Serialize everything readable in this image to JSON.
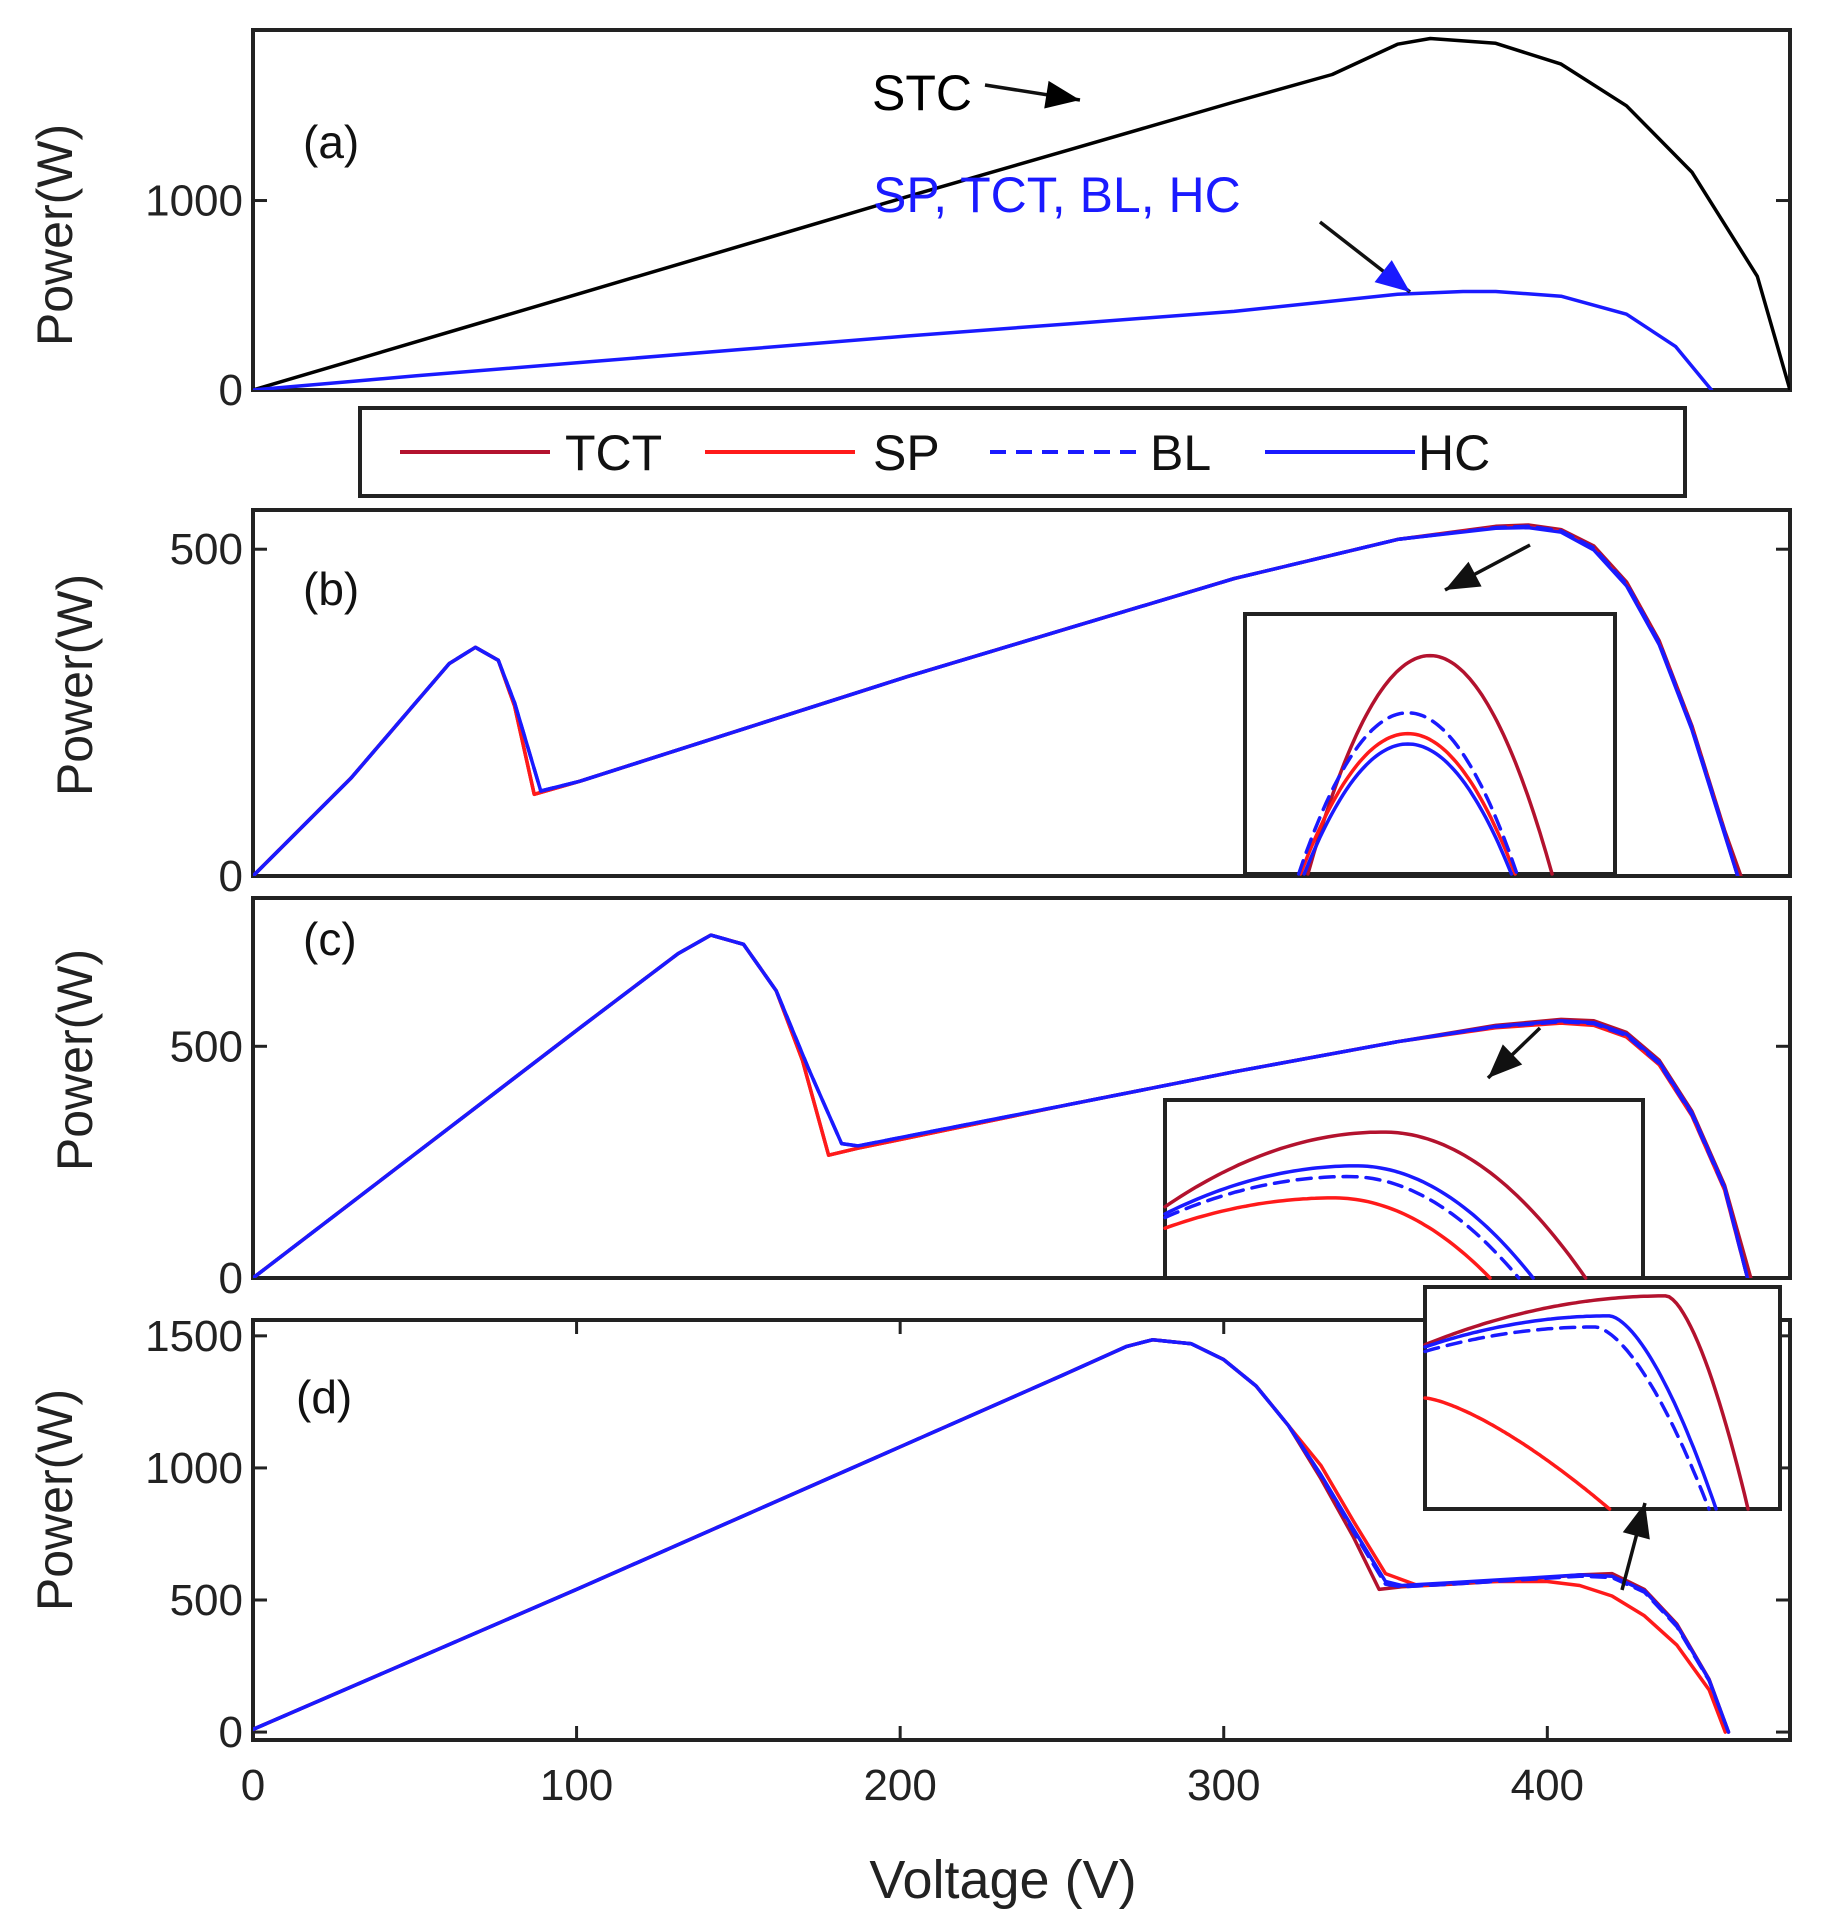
{
  "colors": {
    "STC": "#000000",
    "TCT": "#b3122e",
    "SP": "#ff1a1a",
    "BL": "#1a1aff",
    "HC": "#1a1aff",
    "annot_blue": "#1a1aff"
  },
  "chart_data": [
    {
      "id": "a",
      "type": "line",
      "panel_label": "(a)",
      "ylabel": "Power(W)",
      "xlim": [
        0,
        470
      ],
      "ylim": [
        0,
        1900
      ],
      "yticks": [
        0,
        1000
      ],
      "ytick_labels": [
        "0",
        "1000"
      ],
      "series": [
        {
          "name": "STC",
          "x": [
            0,
            50,
            100,
            150,
            200,
            250,
            300,
            330,
            350,
            360,
            380,
            400,
            420,
            440,
            460,
            470
          ],
          "y": [
            0,
            255,
            510,
            765,
            1020,
            1270,
            1520,
            1665,
            1825,
            1855,
            1830,
            1720,
            1500,
            1150,
            600,
            0
          ]
        },
        {
          "name": "SP, TCT, BL, HC",
          "x": [
            0,
            50,
            100,
            150,
            200,
            250,
            300,
            350,
            370,
            380,
            400,
            420,
            435,
            446
          ],
          "y": [
            0,
            75,
            145,
            215,
            285,
            350,
            415,
            505,
            520,
            520,
            495,
            400,
            230,
            0
          ]
        }
      ],
      "annotations": [
        {
          "text": "STC",
          "color": "STC"
        },
        {
          "text": "SP, TCT, BL, HC",
          "color": "annot_blue"
        }
      ]
    },
    {
      "id": "b",
      "type": "line",
      "panel_label": "(b)",
      "ylabel": "Power(W)",
      "xlim": [
        0,
        470
      ],
      "ylim": [
        0,
        560
      ],
      "yticks": [
        0,
        500
      ],
      "ytick_labels": [
        "0",
        "500"
      ],
      "series": [
        {
          "name": "TCT",
          "x": [
            0,
            30,
            60,
            68,
            75,
            80,
            86,
            100,
            150,
            200,
            250,
            300,
            350,
            380,
            390,
            400,
            410,
            420,
            430,
            440,
            450,
            455
          ],
          "y": [
            0,
            150,
            325,
            350,
            330,
            260,
            125,
            145,
            225,
            305,
            380,
            455,
            515,
            535,
            537,
            530,
            505,
            450,
            360,
            230,
            70,
            0
          ]
        },
        {
          "name": "SP",
          "x": [
            0,
            30,
            60,
            68,
            75,
            80,
            86,
            100,
            150,
            200,
            250,
            300,
            350,
            380,
            390,
            400,
            410,
            420,
            430,
            440,
            450,
            454
          ],
          "y": [
            0,
            150,
            325,
            350,
            330,
            260,
            125,
            145,
            225,
            305,
            380,
            455,
            515,
            533,
            534,
            527,
            500,
            445,
            355,
            225,
            65,
            0
          ]
        },
        {
          "name": "BL",
          "x": [
            0,
            30,
            60,
            68,
            75,
            80,
            88,
            100,
            150,
            200,
            250,
            300,
            350,
            380,
            390,
            400,
            410,
            420,
            430,
            440,
            450,
            454
          ],
          "y": [
            0,
            150,
            325,
            350,
            330,
            265,
            130,
            145,
            225,
            305,
            380,
            455,
            515,
            533,
            535,
            528,
            502,
            447,
            357,
            227,
            67,
            0
          ]
        },
        {
          "name": "HC",
          "x": [
            0,
            30,
            60,
            68,
            75,
            80,
            88,
            100,
            150,
            200,
            250,
            300,
            350,
            380,
            390,
            400,
            410,
            420,
            430,
            440,
            450,
            454
          ],
          "y": [
            0,
            150,
            325,
            350,
            330,
            265,
            130,
            145,
            225,
            305,
            380,
            455,
            515,
            532,
            533,
            526,
            499,
            444,
            354,
            224,
            64,
            0
          ]
        }
      ],
      "inset_series": [
        {
          "name": "TCT",
          "peak": 0.84,
          "half_width": 0.66,
          "shift": 0.0
        },
        {
          "name": "SP",
          "peak": 0.54,
          "half_width": 0.58,
          "shift": -0.06
        },
        {
          "name": "BL",
          "peak": 0.62,
          "half_width": 0.59,
          "shift": -0.06
        },
        {
          "name": "HC",
          "peak": 0.5,
          "half_width": 0.56,
          "shift": -0.06
        }
      ]
    },
    {
      "id": "c",
      "type": "line",
      "panel_label": "(c)",
      "ylabel": "Power(W)",
      "xlim": [
        0,
        470
      ],
      "ylim": [
        0,
        820
      ],
      "yticks": [
        0,
        500
      ],
      "ytick_labels": [
        "0",
        "500"
      ],
      "series": [
        {
          "name": "TCT",
          "x": [
            0,
            50,
            100,
            130,
            140,
            150,
            160,
            168,
            176,
            185,
            250,
            300,
            350,
            380,
            400,
            410,
            420,
            430,
            440,
            450,
            458
          ],
          "y": [
            0,
            270,
            540,
            700,
            740,
            720,
            620,
            470,
            265,
            280,
            375,
            445,
            510,
            545,
            558,
            555,
            530,
            470,
            360,
            200,
            0
          ]
        },
        {
          "name": "SP",
          "x": [
            0,
            50,
            100,
            130,
            140,
            150,
            160,
            168,
            176,
            185,
            250,
            300,
            350,
            380,
            400,
            410,
            420,
            430,
            440,
            450,
            457
          ],
          "y": [
            0,
            270,
            540,
            700,
            740,
            720,
            620,
            470,
            265,
            280,
            375,
            445,
            510,
            540,
            550,
            545,
            520,
            460,
            350,
            190,
            0
          ]
        },
        {
          "name": "BL",
          "x": [
            0,
            50,
            100,
            130,
            140,
            150,
            160,
            170,
            180,
            185,
            250,
            300,
            350,
            380,
            400,
            410,
            420,
            430,
            440,
            450,
            457
          ],
          "y": [
            0,
            270,
            540,
            700,
            740,
            720,
            620,
            450,
            290,
            285,
            375,
            445,
            510,
            542,
            553,
            549,
            523,
            463,
            353,
            193,
            0
          ]
        },
        {
          "name": "HC",
          "x": [
            0,
            50,
            100,
            130,
            140,
            150,
            160,
            170,
            180,
            185,
            250,
            300,
            350,
            380,
            400,
            410,
            420,
            430,
            440,
            450,
            457
          ],
          "y": [
            0,
            270,
            540,
            700,
            740,
            720,
            620,
            450,
            290,
            285,
            375,
            445,
            510,
            543,
            555,
            551,
            526,
            466,
            356,
            196,
            0
          ]
        }
      ],
      "inset_series": [
        {
          "name": "TCT",
          "peak": 0.82,
          "end": 0.88,
          "start": 0.4
        },
        {
          "name": "SP",
          "peak": 0.45,
          "end": 0.68,
          "start": 0.28
        },
        {
          "name": "BL",
          "peak": 0.57,
          "end": 0.74,
          "start": 0.34
        },
        {
          "name": "HC",
          "peak": 0.63,
          "end": 0.77,
          "start": 0.36
        }
      ]
    },
    {
      "id": "d",
      "type": "line",
      "panel_label": "(d)",
      "ylabel": "Power(W)",
      "xlabel": "Voltage (V)",
      "xlim": [
        0,
        475
      ],
      "ylim": [
        -30,
        1560
      ],
      "yticks": [
        0,
        500,
        1000,
        1500
      ],
      "ytick_labels": [
        "0",
        "500",
        "1000",
        "1500"
      ],
      "xticks": [
        0,
        100,
        200,
        300,
        400
      ],
      "xtick_labels": [
        "0",
        "100",
        "200",
        "300",
        "400"
      ],
      "series": [
        {
          "name": "TCT",
          "x": [
            0,
            50,
            100,
            150,
            200,
            250,
            270,
            278,
            290,
            300,
            310,
            320,
            330,
            340,
            348,
            355,
            370,
            390,
            410,
            420,
            430,
            440,
            450,
            456
          ],
          "y": [
            10,
            275,
            540,
            810,
            1080,
            1350,
            1460,
            1485,
            1470,
            1410,
            1310,
            1160,
            960,
            740,
            540,
            550,
            560,
            575,
            595,
            600,
            540,
            410,
            200,
            0
          ]
        },
        {
          "name": "SP",
          "x": [
            0,
            50,
            100,
            150,
            200,
            250,
            270,
            278,
            290,
            300,
            310,
            320,
            330,
            340,
            350,
            360,
            380,
            400,
            410,
            420,
            430,
            440,
            450,
            455
          ],
          "y": [
            10,
            275,
            540,
            810,
            1080,
            1350,
            1460,
            1485,
            1470,
            1410,
            1310,
            1160,
            1010,
            800,
            600,
            555,
            570,
            570,
            555,
            515,
            440,
            330,
            160,
            0
          ]
        },
        {
          "name": "BL",
          "x": [
            0,
            50,
            100,
            150,
            200,
            250,
            270,
            278,
            290,
            300,
            310,
            320,
            330,
            340,
            350,
            355,
            370,
            390,
            410,
            420,
            430,
            440,
            450,
            456
          ],
          "y": [
            10,
            275,
            540,
            810,
            1080,
            1350,
            1460,
            1485,
            1470,
            1410,
            1310,
            1160,
            970,
            760,
            560,
            550,
            560,
            575,
            590,
            585,
            530,
            400,
            195,
            0
          ]
        },
        {
          "name": "HC",
          "x": [
            0,
            50,
            100,
            150,
            200,
            250,
            270,
            278,
            290,
            300,
            310,
            320,
            330,
            340,
            350,
            355,
            370,
            390,
            410,
            420,
            430,
            440,
            450,
            456
          ],
          "y": [
            10,
            275,
            540,
            810,
            1080,
            1350,
            1460,
            1485,
            1470,
            1410,
            1310,
            1160,
            975,
            770,
            570,
            555,
            565,
            580,
            595,
            590,
            535,
            405,
            198,
            0
          ]
        }
      ],
      "inset_series": [
        {
          "name": "TCT",
          "start": 0.74,
          "peak": 0.96,
          "peak_at": 0.68,
          "end_at": 0.91
        },
        {
          "name": "SP",
          "start": 0.5,
          "peak": 0.5,
          "peak_at": 0.0,
          "end_at": 0.52
        },
        {
          "name": "BL",
          "start": 0.71,
          "peak": 0.82,
          "peak_at": 0.48,
          "end_at": 0.8
        },
        {
          "name": "HC",
          "start": 0.73,
          "peak": 0.87,
          "peak_at": 0.52,
          "end_at": 0.82
        }
      ]
    }
  ],
  "legend": [
    {
      "name": "TCT",
      "label": "TCT",
      "dash": false
    },
    {
      "name": "SP",
      "label": "SP",
      "dash": false
    },
    {
      "name": "BL",
      "label": "BL",
      "dash": true
    },
    {
      "name": "HC",
      "label": "HC",
      "dash": false
    }
  ]
}
